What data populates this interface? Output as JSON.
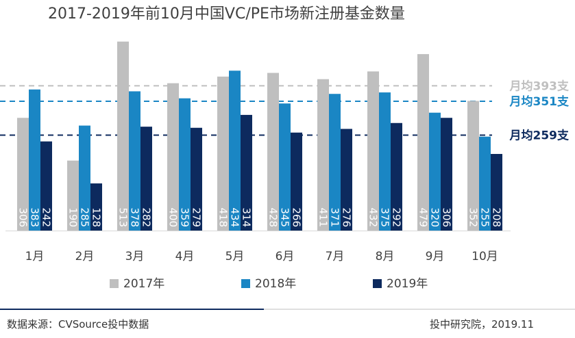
{
  "chart_data": {
    "type": "bar",
    "title": "2017-2019年前10月中国VC/PE市场新注册基金数量",
    "categories": [
      "1月",
      "2月",
      "3月",
      "4月",
      "5月",
      "6月",
      "7月",
      "8月",
      "9月",
      "10月"
    ],
    "series": [
      {
        "name": "2017年",
        "color": "#bfbfbf",
        "values": [
          306,
          190,
          513,
          400,
          418,
          428,
          411,
          432,
          479,
          352
        ]
      },
      {
        "name": "2018年",
        "color": "#1a86c4",
        "values": [
          383,
          285,
          378,
          359,
          434,
          345,
          371,
          375,
          320,
          255
        ]
      },
      {
        "name": "2019年",
        "color": "#0d2a5e",
        "values": [
          242,
          128,
          282,
          279,
          314,
          266,
          276,
          292,
          306,
          208
        ]
      }
    ],
    "reference_lines": [
      {
        "label": "月均393支",
        "value": 393,
        "color": "#bfbfbf"
      },
      {
        "label": "月均351支",
        "value": 351,
        "color": "#1a86c4"
      },
      {
        "label": "月均259支",
        "value": 259,
        "color": "#0d2a5e"
      }
    ],
    "ylim": [
      0,
      520
    ],
    "legend_position": "bottom",
    "grid": false
  },
  "footer": {
    "source": "数据来源：CVSource投中数据",
    "credit": "投中研究院，2019.11"
  }
}
